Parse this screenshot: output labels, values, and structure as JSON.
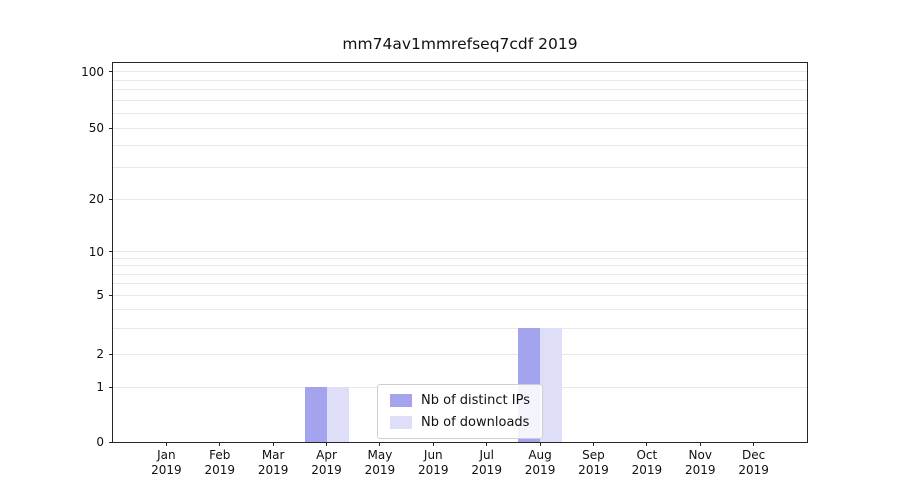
{
  "chart_data": {
    "type": "bar",
    "title": "mm74av1mmrefseq7cdf 2019",
    "categories": [
      "Jan 2019",
      "Feb 2019",
      "Mar 2019",
      "Apr 2019",
      "May 2019",
      "Jun 2019",
      "Jul 2019",
      "Aug 2019",
      "Sep 2019",
      "Oct 2019",
      "Nov 2019",
      "Dec 2019"
    ],
    "series": [
      {
        "name": "Nb of distinct IPs",
        "color": "#a4a4ee",
        "values": [
          0,
          0,
          0,
          1,
          0,
          0,
          0,
          3,
          0,
          0,
          0,
          0
        ]
      },
      {
        "name": "Nb of downloads",
        "color": "#dedef8",
        "values": [
          0,
          0,
          0,
          1,
          0,
          0,
          0,
          3,
          0,
          0,
          0,
          0
        ]
      }
    ],
    "y_ticks": [
      0,
      1,
      2,
      5,
      10,
      20,
      50,
      100
    ],
    "y_scale": "symlog",
    "ylim": [
      0,
      115
    ],
    "xlabel": "",
    "ylabel": "",
    "grid": "horizontal",
    "legend_position": "lower center"
  }
}
